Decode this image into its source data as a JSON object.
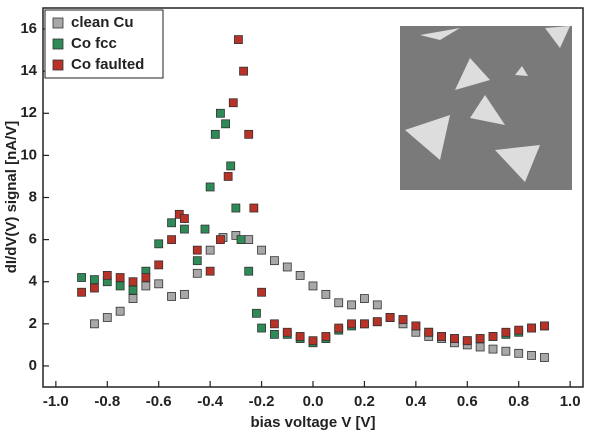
{
  "chart_data": {
    "type": "scatter",
    "xlabel": "bias voltage V [V]",
    "ylabel": "dI/dV(V) signal [nA/V]",
    "xlim": [
      -1.05,
      1.05
    ],
    "xticks": [
      {
        "value": -1,
        "label": "-1.0"
      },
      -0.8,
      -0.6,
      -0.4,
      -0.2,
      {
        "value": 0,
        "label": "0.0"
      },
      0.2,
      0.4,
      0.6,
      0.8,
      {
        "value": 1,
        "label": "1.0"
      }
    ],
    "ylim": [
      -1,
      17
    ],
    "yticks": [
      0,
      2,
      4,
      6,
      8,
      10,
      12,
      14,
      16
    ],
    "legend": "upper left",
    "series": [
      {
        "name": "clean Cu",
        "color": "#a8a8a8",
        "x": [
          -0.85,
          -0.8,
          -0.75,
          -0.7,
          -0.65,
          -0.6,
          -0.55,
          -0.5,
          -0.45,
          -0.4,
          -0.35,
          -0.3,
          -0.25,
          -0.2,
          -0.15,
          -0.1,
          -0.05,
          0,
          0.05,
          0.1,
          0.15,
          0.2,
          0.25,
          0.3,
          0.35,
          0.4,
          0.45,
          0.5,
          0.55,
          0.6,
          0.65,
          0.7,
          0.75,
          0.8,
          0.85,
          0.9
        ],
        "values": [
          2.0,
          2.3,
          2.6,
          3.2,
          3.8,
          3.9,
          3.3,
          3.4,
          4.4,
          5.5,
          6.1,
          6.2,
          6.0,
          5.5,
          5.0,
          4.7,
          4.3,
          3.8,
          3.4,
          3.0,
          2.9,
          3.2,
          2.9,
          2.3,
          2.0,
          1.6,
          1.4,
          1.3,
          1.1,
          1.0,
          0.9,
          0.8,
          0.7,
          0.6,
          0.5,
          0.4
        ]
      },
      {
        "name": "Co fcc",
        "color": "#2e8b57",
        "x": [
          -0.9,
          -0.85,
          -0.8,
          -0.75,
          -0.7,
          -0.65,
          -0.6,
          -0.55,
          -0.5,
          -0.45,
          -0.42,
          -0.4,
          -0.38,
          -0.36,
          -0.34,
          -0.32,
          -0.3,
          -0.28,
          -0.25,
          -0.22,
          -0.2,
          -0.15,
          -0.1,
          -0.05,
          0,
          0.05,
          0.1,
          0.15,
          0.2,
          0.25,
          0.3,
          0.35,
          0.4,
          0.45,
          0.5,
          0.55,
          0.6,
          0.65,
          0.7,
          0.75,
          0.8,
          0.85,
          0.9
        ],
        "values": [
          4.2,
          4.1,
          4.0,
          3.8,
          3.6,
          4.5,
          5.8,
          6.8,
          6.5,
          5.0,
          6.5,
          8.5,
          11.0,
          12.0,
          11.5,
          9.5,
          7.5,
          6.0,
          4.5,
          2.5,
          1.8,
          1.5,
          1.5,
          1.3,
          1.1,
          1.3,
          1.7,
          1.9,
          2.0,
          2.1,
          2.3,
          2.2,
          1.9,
          1.6,
          1.4,
          1.3,
          1.2,
          1.3,
          1.4,
          1.5,
          1.6,
          1.8,
          1.9
        ]
      },
      {
        "name": "Co faulted",
        "color": "#b83228",
        "x": [
          -0.9,
          -0.85,
          -0.8,
          -0.75,
          -0.7,
          -0.65,
          -0.6,
          -0.55,
          -0.52,
          -0.5,
          -0.45,
          -0.4,
          -0.36,
          -0.33,
          -0.31,
          -0.29,
          -0.27,
          -0.25,
          -0.23,
          -0.2,
          -0.15,
          -0.1,
          -0.05,
          0,
          0.05,
          0.1,
          0.15,
          0.2,
          0.25,
          0.3,
          0.35,
          0.4,
          0.45,
          0.5,
          0.55,
          0.6,
          0.65,
          0.7,
          0.75,
          0.8,
          0.85,
          0.9
        ],
        "values": [
          3.5,
          3.7,
          4.3,
          4.2,
          4.0,
          4.2,
          4.8,
          6.0,
          7.2,
          7.0,
          5.5,
          4.5,
          6.0,
          9.0,
          12.5,
          15.5,
          14.0,
          11.0,
          7.5,
          3.5,
          2.0,
          1.6,
          1.4,
          1.2,
          1.4,
          1.8,
          2.0,
          2.0,
          2.1,
          2.3,
          2.2,
          1.9,
          1.6,
          1.4,
          1.3,
          1.2,
          1.3,
          1.4,
          1.6,
          1.7,
          1.8,
          1.9
        ]
      }
    ]
  }
}
